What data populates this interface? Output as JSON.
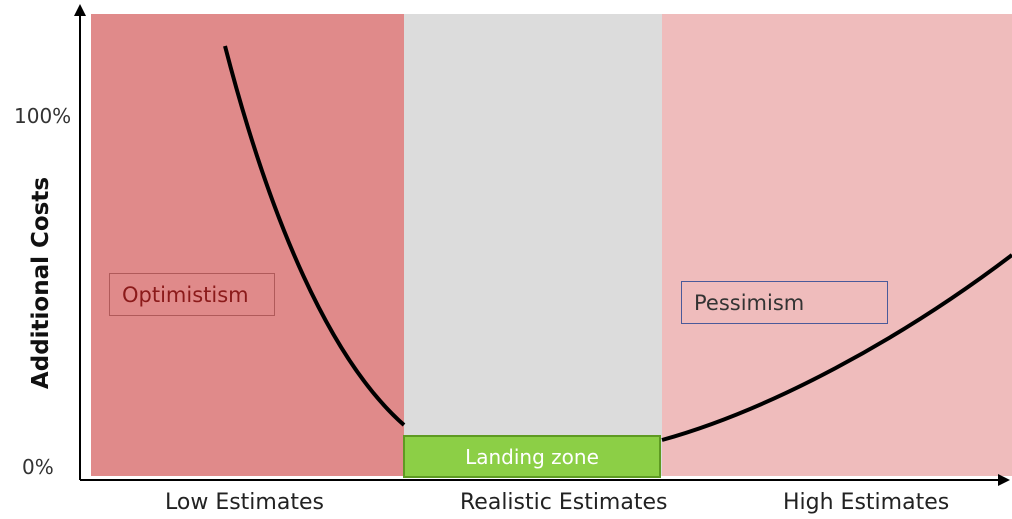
{
  "diagram": {
    "y_axis": {
      "title": "Additional Costs",
      "ticks": [
        "100%",
        "0%"
      ]
    },
    "x_axis": {
      "labels": [
        "Low Estimates",
        "Realistic Estimates",
        "High Estimates"
      ]
    },
    "zones": [
      {
        "name": "low",
        "color": "#e08a8a"
      },
      {
        "name": "realistic",
        "color": "#dcdcdc"
      },
      {
        "name": "high",
        "color": "#efbcbc"
      }
    ],
    "annotations": {
      "optimism": "Optimistism",
      "pessimism": "Pessimism",
      "landing_zone": "Landing zone"
    },
    "colors": {
      "curve": "#000000",
      "optimism_text": "#8b1a1a",
      "optimism_border": "#b05a5a",
      "pessimism_text": "#333333",
      "pessimism_border": "#4a5a9a",
      "landing_fill": "#8ccf46"
    }
  }
}
